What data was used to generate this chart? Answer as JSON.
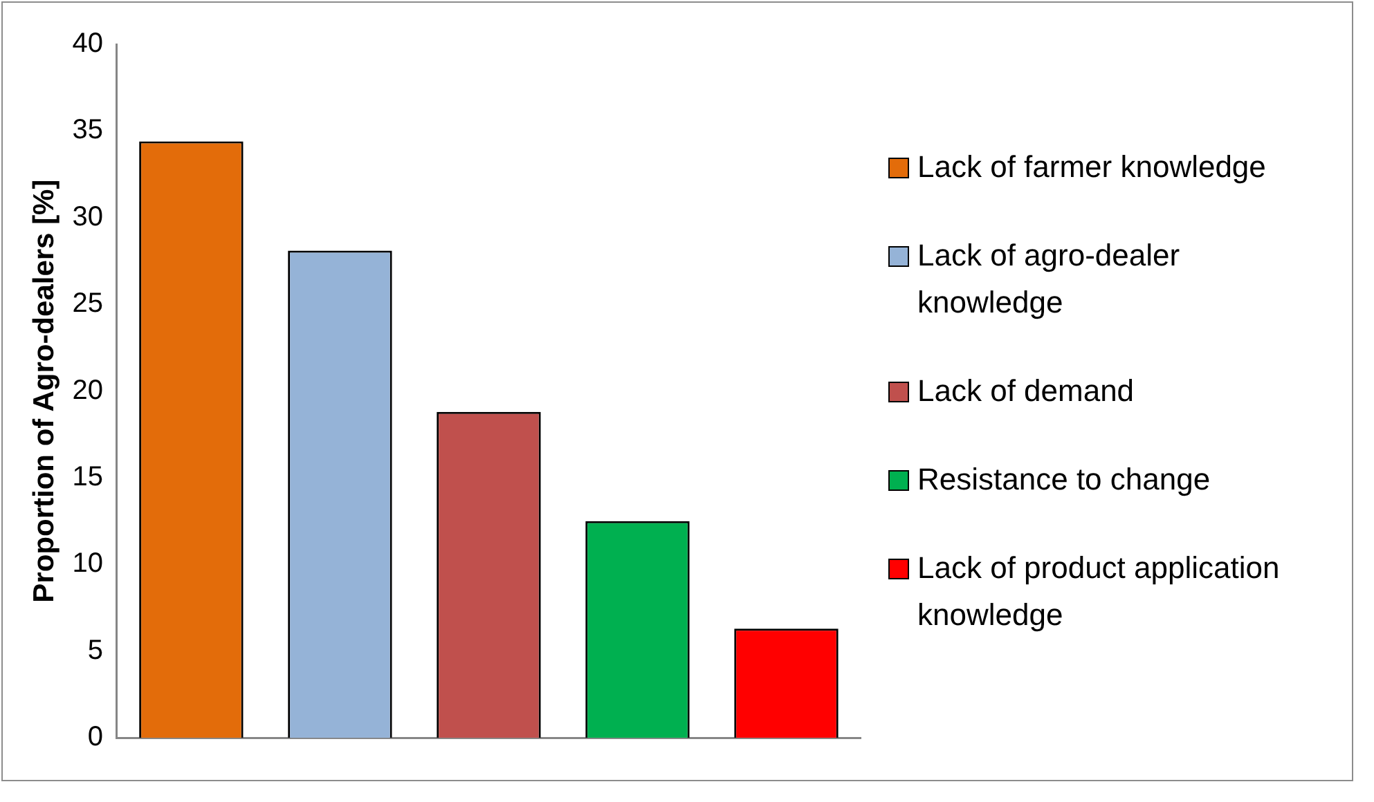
{
  "chart_data": {
    "type": "bar",
    "ylabel": "Proportion of Agro-dealers [%]",
    "categories": [
      null,
      null,
      null,
      null,
      null
    ],
    "series": [
      {
        "name": "Lack of farmer knowledge",
        "color": "#e36c0a",
        "values": [
          34.4,
          null,
          null,
          null,
          null
        ]
      },
      {
        "name": "Lack of agro-dealer knowledge",
        "color": "#95b3d7",
        "values": [
          null,
          28.1,
          null,
          null,
          null
        ]
      },
      {
        "name": "Lack of demand",
        "color": "#c0504d",
        "values": [
          null,
          null,
          18.8,
          null,
          null
        ]
      },
      {
        "name": "Resistance to change",
        "color": "#00b050",
        "values": [
          null,
          null,
          null,
          12.5,
          null
        ]
      },
      {
        "name": "Lack of product application knowledge",
        "color": "#ff0000",
        "values": [
          null,
          null,
          null,
          null,
          6.3
        ]
      }
    ],
    "ylim": [
      0,
      40
    ],
    "yticks": [
      0,
      5,
      10,
      15,
      20,
      25,
      30,
      35,
      40
    ],
    "legend": "right"
  }
}
